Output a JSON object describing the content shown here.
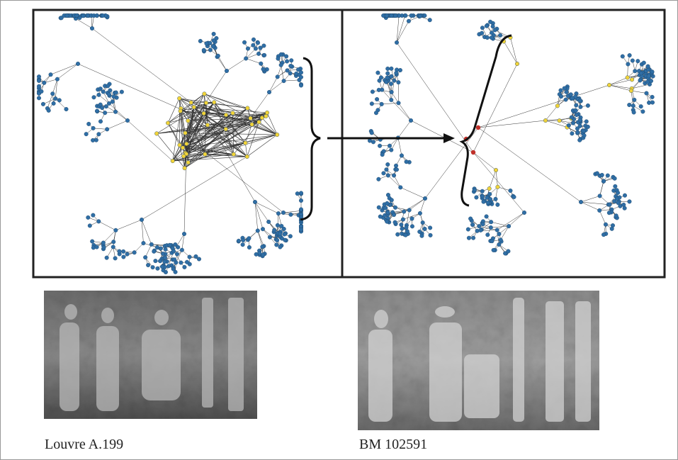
{
  "captions": {
    "left": "Louvre A.199",
    "right": "BM 102591"
  }
}
